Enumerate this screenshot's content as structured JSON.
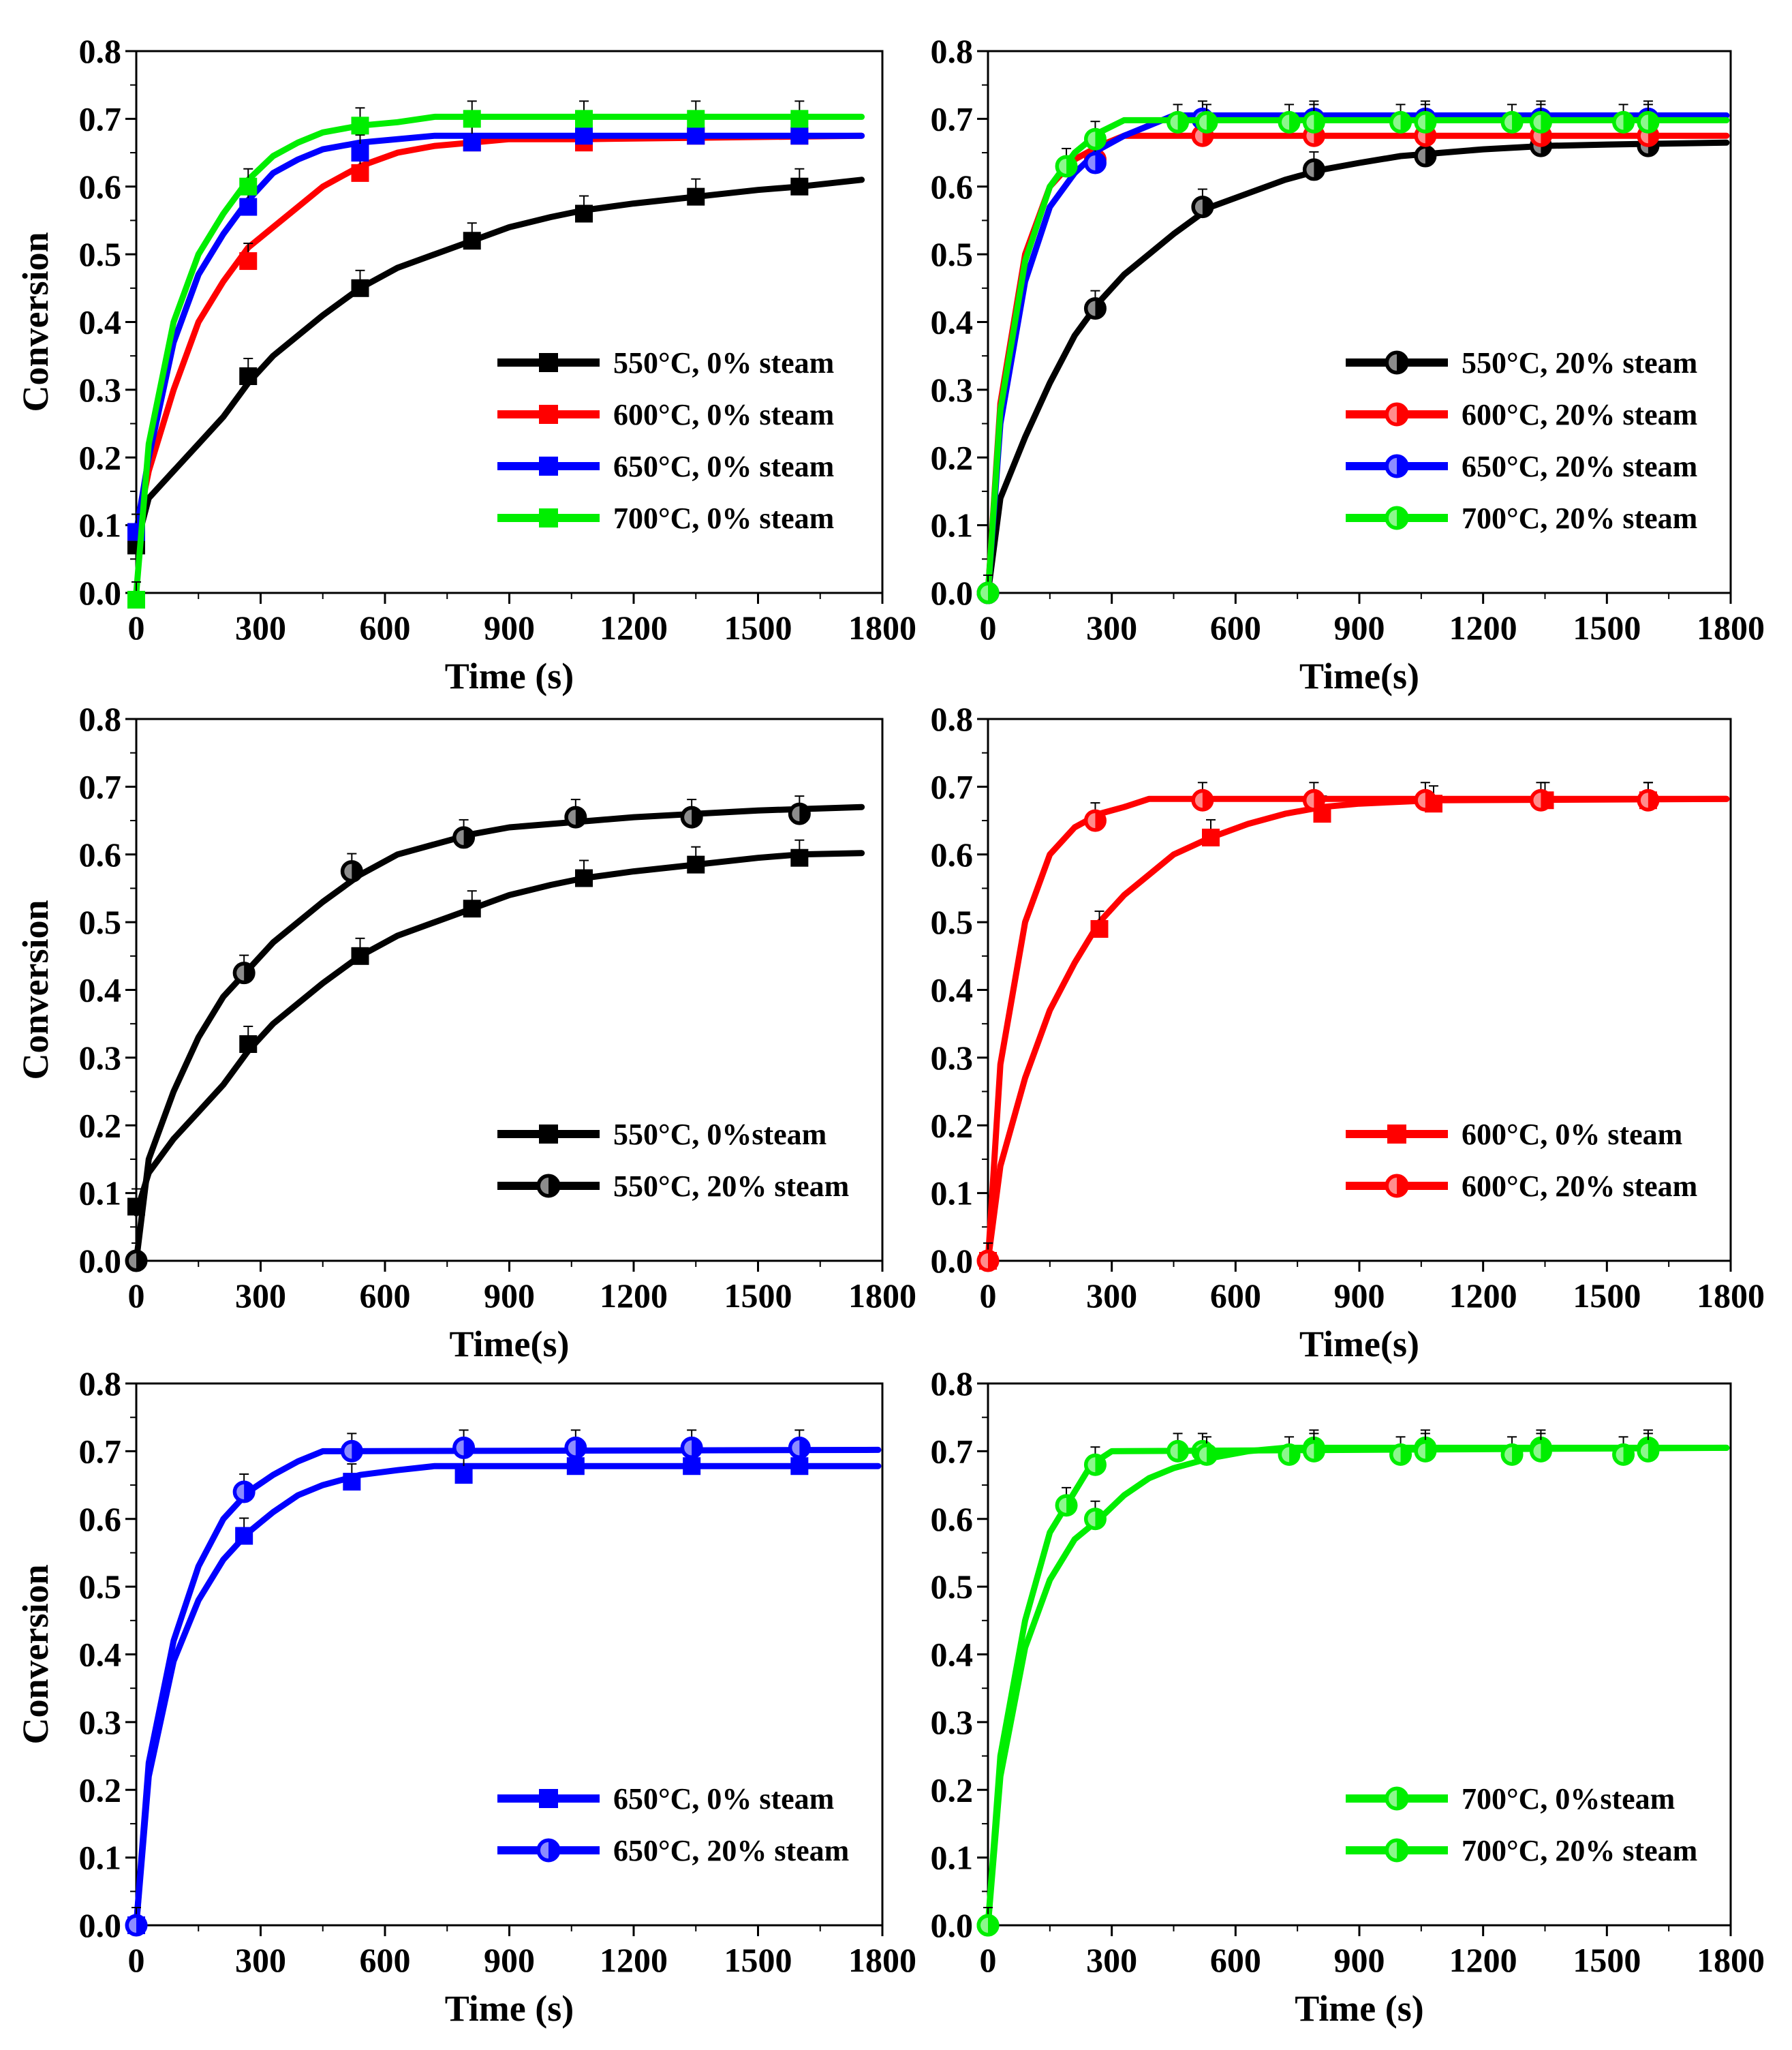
{
  "figure": {
    "panel_count": 6
  },
  "chart_data": [
    {
      "id": "a",
      "type": "line",
      "title": "",
      "xlabel": "Time (s)",
      "ylabel": "Conversion",
      "xlim": [
        0,
        1800
      ],
      "ylim": [
        0.0,
        0.8
      ],
      "xticks": [
        "0",
        "300",
        "600",
        "900",
        "1200",
        "1500",
        "1800"
      ],
      "yticks": [
        "0.0",
        "0.1",
        "0.2",
        "0.3",
        "0.4",
        "0.5",
        "0.6",
        "0.7",
        "0.8"
      ],
      "legend_position": "bottom-right",
      "series": [
        {
          "name": "550°C, 0% steam",
          "color": "#000000",
          "marker": "square",
          "x": [
            0,
            30,
            90,
            150,
            210,
            270,
            330,
            390,
            450,
            540,
            630,
            720,
            810,
            900,
            1000,
            1080,
            1200,
            1350,
            1500,
            1600,
            1750
          ],
          "y": [
            0.07,
            0.14,
            0.18,
            0.22,
            0.26,
            0.31,
            0.35,
            0.38,
            0.41,
            0.45,
            0.48,
            0.5,
            0.52,
            0.54,
            0.555,
            0.565,
            0.575,
            0.585,
            0.595,
            0.6,
            0.61
          ],
          "markers_x": [
            0,
            270,
            540,
            810,
            1080,
            1350,
            1600
          ],
          "markers_y": [
            0.07,
            0.32,
            0.45,
            0.52,
            0.56,
            0.585,
            0.6
          ]
        },
        {
          "name": "600°C, 0% steam",
          "color": "#ff0000",
          "marker": "square",
          "x": [
            0,
            30,
            90,
            150,
            210,
            270,
            330,
            390,
            450,
            540,
            630,
            720,
            810,
            900,
            1080,
            1750
          ],
          "y": [
            0.09,
            0.18,
            0.3,
            0.4,
            0.46,
            0.51,
            0.54,
            0.57,
            0.6,
            0.63,
            0.65,
            0.66,
            0.665,
            0.67,
            0.67,
            0.675
          ],
          "markers_x": [
            0,
            270,
            540,
            810,
            1080,
            1350,
            1600
          ],
          "markers_y": [
            0.09,
            0.49,
            0.62,
            0.665,
            0.665,
            0.675,
            0.675
          ]
        },
        {
          "name": "650°C, 0% steam",
          "color": "#0000ff",
          "marker": "square",
          "x": [
            0,
            30,
            90,
            150,
            210,
            270,
            330,
            390,
            450,
            540,
            630,
            720,
            1750
          ],
          "y": [
            0.09,
            0.2,
            0.37,
            0.47,
            0.53,
            0.58,
            0.62,
            0.64,
            0.655,
            0.665,
            0.67,
            0.675,
            0.675
          ],
          "markers_x": [
            0,
            270,
            540,
            810,
            1080,
            1350,
            1600
          ],
          "markers_y": [
            0.09,
            0.57,
            0.65,
            0.665,
            0.675,
            0.675,
            0.675
          ]
        },
        {
          "name": "700°C, 0% steam",
          "color": "#00ee00",
          "marker": "square",
          "x": [
            0,
            30,
            90,
            150,
            210,
            270,
            330,
            390,
            450,
            540,
            630,
            720,
            1750
          ],
          "y": [
            0.0,
            0.22,
            0.4,
            0.5,
            0.56,
            0.61,
            0.645,
            0.665,
            0.68,
            0.69,
            0.695,
            0.703,
            0.703
          ],
          "markers_x": [
            0,
            270,
            540,
            810,
            1080,
            1350,
            1600
          ],
          "markers_y": [
            -0.01,
            0.6,
            0.69,
            0.7,
            0.7,
            0.7,
            0.7
          ]
        }
      ]
    },
    {
      "id": "b",
      "type": "line",
      "title": "",
      "xlabel": "Time(s)",
      "ylabel": "",
      "xlim": [
        0,
        1800
      ],
      "ylim": [
        0.0,
        0.8
      ],
      "xticks": [
        "0",
        "300",
        "600",
        "900",
        "1200",
        "1500",
        "1800"
      ],
      "yticks": [
        "0.0",
        "0.1",
        "0.2",
        "0.3",
        "0.4",
        "0.5",
        "0.6",
        "0.7",
        "0.8"
      ],
      "legend_position": "bottom-right",
      "series": [
        {
          "name": "550°C, 20% steam",
          "color": "#000000",
          "marker": "circle",
          "x": [
            0,
            30,
            90,
            150,
            210,
            270,
            330,
            390,
            450,
            540,
            630,
            720,
            810,
            900,
            1000,
            1100,
            1200,
            1350,
            1500,
            1790
          ],
          "y": [
            0.0,
            0.14,
            0.23,
            0.31,
            0.38,
            0.43,
            0.47,
            0.5,
            0.53,
            0.57,
            0.59,
            0.61,
            0.625,
            0.635,
            0.645,
            0.65,
            0.655,
            0.66,
            0.662,
            0.665
          ],
          "markers_x": [
            0,
            260,
            520,
            790,
            1060,
            1340,
            1600
          ],
          "markers_y": [
            0.0,
            0.42,
            0.57,
            0.625,
            0.645,
            0.66,
            0.66
          ]
        },
        {
          "name": "600°C, 20% steam",
          "color": "#ff0000",
          "marker": "circle",
          "x": [
            0,
            30,
            90,
            150,
            210,
            270,
            330,
            1790
          ],
          "y": [
            0.0,
            0.28,
            0.5,
            0.6,
            0.64,
            0.66,
            0.675,
            0.675
          ],
          "markers_x": [
            0,
            260,
            520,
            790,
            1060,
            1340,
            1600
          ],
          "markers_y": [
            0.0,
            0.64,
            0.675,
            0.675,
            0.675,
            0.675,
            0.675
          ]
        },
        {
          "name": "650°C, 20% steam",
          "color": "#0000ff",
          "marker": "circle",
          "x": [
            0,
            30,
            90,
            150,
            210,
            270,
            330,
            390,
            450,
            1790
          ],
          "y": [
            0.0,
            0.25,
            0.46,
            0.57,
            0.62,
            0.655,
            0.675,
            0.69,
            0.705,
            0.705
          ],
          "markers_x": [
            0,
            260,
            520,
            790,
            1060,
            1340,
            1600
          ],
          "markers_y": [
            0.0,
            0.635,
            0.7,
            0.7,
            0.7,
            0.7,
            0.7
          ]
        },
        {
          "name": "700°C, 20% steam",
          "color": "#00ee00",
          "marker": "circle",
          "x": [
            0,
            30,
            90,
            150,
            210,
            270,
            330,
            1790
          ],
          "y": [
            0.0,
            0.27,
            0.49,
            0.6,
            0.65,
            0.68,
            0.698,
            0.698
          ],
          "markers_x": [
            0,
            190,
            260,
            460,
            530,
            730,
            790,
            1000,
            1060,
            1270,
            1340,
            1540,
            1600
          ],
          "markers_y": [
            0.0,
            0.63,
            0.67,
            0.695,
            0.695,
            0.695,
            0.695,
            0.695,
            0.695,
            0.695,
            0.695,
            0.695,
            0.695
          ]
        }
      ]
    },
    {
      "id": "c",
      "type": "line",
      "title": "",
      "xlabel": "Time(s)",
      "ylabel": "Conversion",
      "xlim": [
        0,
        1800
      ],
      "ylim": [
        0.0,
        0.8
      ],
      "xticks": [
        "0",
        "300",
        "600",
        "900",
        "1200",
        "1500",
        "1800"
      ],
      "yticks": [
        "0.0",
        "0.1",
        "0.2",
        "0.3",
        "0.4",
        "0.5",
        "0.6",
        "0.7",
        "0.8"
      ],
      "legend_position": "bottom-right",
      "series": [
        {
          "name": "550°C, 0%steam",
          "color": "#000000",
          "marker": "square",
          "x": [
            0,
            30,
            90,
            150,
            210,
            270,
            330,
            390,
            450,
            540,
            630,
            720,
            810,
            900,
            1000,
            1080,
            1200,
            1350,
            1500,
            1600,
            1750
          ],
          "y": [
            0.07,
            0.13,
            0.18,
            0.22,
            0.26,
            0.31,
            0.35,
            0.38,
            0.41,
            0.45,
            0.48,
            0.5,
            0.52,
            0.54,
            0.555,
            0.565,
            0.575,
            0.585,
            0.595,
            0.6,
            0.602
          ],
          "markers_x": [
            0,
            270,
            540,
            810,
            1080,
            1350,
            1600
          ],
          "markers_y": [
            0.08,
            0.32,
            0.45,
            0.52,
            0.565,
            0.585,
            0.595
          ]
        },
        {
          "name": "550°C, 20% steam",
          "color": "#000000",
          "marker": "circle",
          "x": [
            0,
            30,
            90,
            150,
            210,
            270,
            330,
            390,
            450,
            540,
            630,
            720,
            810,
            900,
            1000,
            1100,
            1200,
            1350,
            1500,
            1750
          ],
          "y": [
            0.0,
            0.15,
            0.25,
            0.33,
            0.39,
            0.43,
            0.47,
            0.5,
            0.53,
            0.57,
            0.6,
            0.615,
            0.63,
            0.64,
            0.645,
            0.65,
            0.655,
            0.66,
            0.665,
            0.67
          ],
          "markers_x": [
            0,
            260,
            520,
            790,
            1060,
            1340,
            1600
          ],
          "markers_y": [
            0.0,
            0.425,
            0.575,
            0.625,
            0.655,
            0.655,
            0.66
          ]
        }
      ]
    },
    {
      "id": "d",
      "type": "line",
      "title": "",
      "xlabel": "Time(s)",
      "ylabel": "",
      "xlim": [
        0,
        1800
      ],
      "ylim": [
        0.0,
        0.8
      ],
      "xticks": [
        "0",
        "300",
        "600",
        "900",
        "1200",
        "1500",
        "1800"
      ],
      "yticks": [
        "0.0",
        "0.1",
        "0.2",
        "0.3",
        "0.4",
        "0.5",
        "0.6",
        "0.7",
        "0.8"
      ],
      "legend_position": "bottom-right",
      "series": [
        {
          "name": "600°C, 0% steam",
          "color": "#ff0000",
          "marker": "square",
          "x": [
            0,
            30,
            90,
            150,
            210,
            270,
            330,
            390,
            450,
            540,
            630,
            720,
            810,
            900,
            1080,
            1790
          ],
          "y": [
            0.0,
            0.14,
            0.27,
            0.37,
            0.44,
            0.5,
            0.54,
            0.57,
            0.6,
            0.625,
            0.645,
            0.66,
            0.67,
            0.675,
            0.68,
            0.682
          ],
          "markers_x": [
            0,
            270,
            540,
            810,
            1080,
            1350,
            1600
          ],
          "markers_y": [
            0.0,
            0.49,
            0.625,
            0.66,
            0.675,
            0.68,
            0.68
          ]
        },
        {
          "name": "600°C, 20% steam",
          "color": "#ff0000",
          "marker": "circle",
          "x": [
            0,
            30,
            90,
            150,
            210,
            270,
            330,
            390,
            1790
          ],
          "y": [
            0.0,
            0.29,
            0.5,
            0.6,
            0.64,
            0.66,
            0.67,
            0.682,
            0.682
          ],
          "markers_x": [
            0,
            260,
            520,
            790,
            1060,
            1340,
            1600
          ],
          "markers_y": [
            0.0,
            0.65,
            0.68,
            0.68,
            0.68,
            0.68,
            0.68
          ]
        }
      ]
    },
    {
      "id": "e",
      "type": "line",
      "title": "",
      "xlabel": "Time (s)",
      "ylabel": "Conversion",
      "xlim": [
        0,
        1800
      ],
      "ylim": [
        0.0,
        0.8
      ],
      "xticks": [
        "0",
        "300",
        "600",
        "900",
        "1200",
        "1500",
        "1800"
      ],
      "yticks": [
        "0.0",
        "0.1",
        "0.2",
        "0.3",
        "0.4",
        "0.5",
        "0.6",
        "0.7",
        "0.8"
      ],
      "legend_position": "bottom-right",
      "series": [
        {
          "name": "650°C, 0% steam",
          "color": "#0000ff",
          "marker": "square",
          "x": [
            0,
            30,
            90,
            150,
            210,
            270,
            330,
            390,
            450,
            540,
            630,
            720,
            1790
          ],
          "y": [
            0.0,
            0.22,
            0.39,
            0.48,
            0.54,
            0.58,
            0.61,
            0.635,
            0.65,
            0.665,
            0.672,
            0.678,
            0.678
          ],
          "markers_x": [
            0,
            260,
            520,
            790,
            1060,
            1340,
            1600
          ],
          "markers_y": [
            0.0,
            0.575,
            0.655,
            0.665,
            0.678,
            0.678,
            0.678
          ]
        },
        {
          "name": "650°C, 20% steam",
          "color": "#0000ff",
          "marker": "circle",
          "x": [
            0,
            30,
            90,
            150,
            210,
            270,
            330,
            390,
            450,
            1790
          ],
          "y": [
            0.0,
            0.24,
            0.42,
            0.53,
            0.6,
            0.64,
            0.665,
            0.685,
            0.7,
            0.702
          ],
          "markers_x": [
            0,
            260,
            520,
            790,
            1060,
            1340,
            1600
          ],
          "markers_y": [
            0.0,
            0.64,
            0.7,
            0.705,
            0.705,
            0.705,
            0.705
          ]
        }
      ]
    },
    {
      "id": "f",
      "type": "line",
      "title": "",
      "xlabel": "Time (s)",
      "ylabel": "",
      "xlim": [
        0,
        1800
      ],
      "ylim": [
        0.0,
        0.8
      ],
      "xticks": [
        "0",
        "300",
        "600",
        "900",
        "1200",
        "1500",
        "1800"
      ],
      "yticks": [
        "0.0",
        "0.1",
        "0.2",
        "0.3",
        "0.4",
        "0.5",
        "0.6",
        "0.7",
        "0.8"
      ],
      "legend_position": "bottom-right",
      "series": [
        {
          "name": "700°C, 0%steam",
          "color": "#00ee00",
          "marker": "circle",
          "x": [
            0,
            30,
            90,
            150,
            210,
            270,
            330,
            390,
            450,
            540,
            630,
            720,
            1790
          ],
          "y": [
            0.0,
            0.22,
            0.41,
            0.51,
            0.57,
            0.6,
            0.635,
            0.66,
            0.675,
            0.69,
            0.7,
            0.705,
            0.705
          ],
          "markers_x": [
            0,
            260,
            520,
            790,
            1060,
            1340,
            1600
          ],
          "markers_y": [
            0.0,
            0.6,
            0.7,
            0.705,
            0.705,
            0.705,
            0.705
          ]
        },
        {
          "name": "700°C, 20% steam",
          "color": "#00ee00",
          "marker": "circle",
          "x": [
            0,
            30,
            90,
            150,
            210,
            250,
            300,
            1790
          ],
          "y": [
            0.0,
            0.25,
            0.45,
            0.58,
            0.64,
            0.68,
            0.7,
            0.705
          ],
          "markers_x": [
            0,
            190,
            260,
            460,
            530,
            730,
            790,
            1000,
            1060,
            1270,
            1340,
            1540,
            1600
          ],
          "markers_y": [
            0.0,
            0.62,
            0.68,
            0.7,
            0.695,
            0.695,
            0.7,
            0.695,
            0.7,
            0.695,
            0.7,
            0.695,
            0.7
          ]
        }
      ]
    }
  ]
}
